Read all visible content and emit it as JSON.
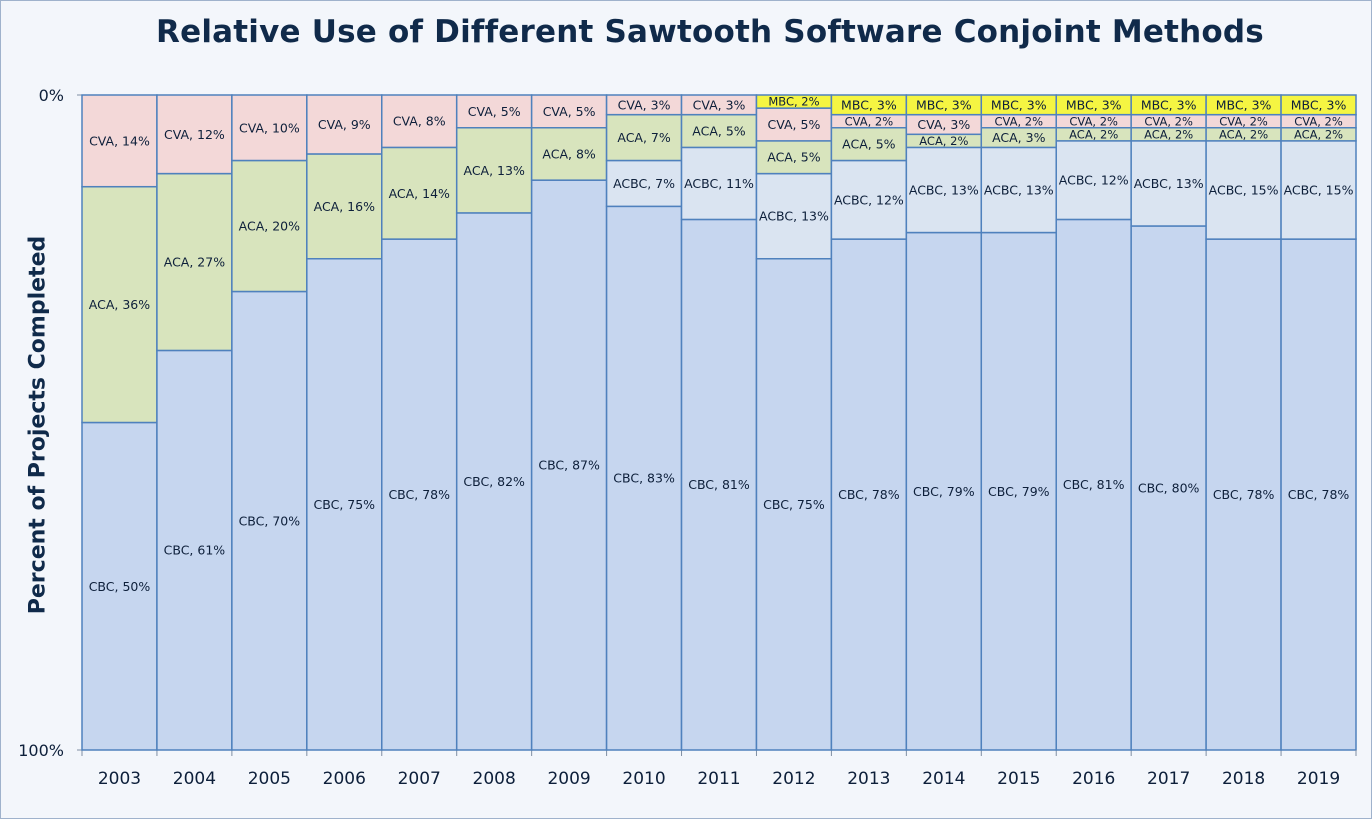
{
  "chart_data": {
    "type": "bar",
    "stacked": true,
    "title": "Relative Use of Different Sawtooth Software Conjoint Methods",
    "xlabel": "",
    "ylabel": "Percent of Projects Completed",
    "ylim": [
      0,
      100
    ],
    "y_ticks": [
      "0%",
      "100%"
    ],
    "categories": [
      "2003",
      "2004",
      "2005",
      "2006",
      "2007",
      "2008",
      "2009",
      "2010",
      "2011",
      "2012",
      "2013",
      "2014",
      "2015",
      "2016",
      "2017",
      "2018",
      "2019"
    ],
    "series": [
      {
        "name": "CBC",
        "color": "#c6d6ef",
        "values": [
          50,
          61,
          70,
          75,
          78,
          82,
          87,
          83,
          81,
          75,
          78,
          79,
          79,
          81,
          80,
          78,
          78
        ]
      },
      {
        "name": "ACBC",
        "color": "#dae4f1",
        "values": [
          0,
          0,
          0,
          0,
          0,
          0,
          0,
          7,
          11,
          13,
          12,
          13,
          13,
          12,
          13,
          15,
          15
        ]
      },
      {
        "name": "ACA",
        "color": "#d8e4bd",
        "values": [
          36,
          27,
          20,
          16,
          14,
          13,
          8,
          7,
          5,
          5,
          5,
          2,
          3,
          2,
          2,
          2,
          2
        ]
      },
      {
        "name": "CVA",
        "color": "#f3d8d8",
        "values": [
          14,
          12,
          10,
          9,
          8,
          5,
          5,
          3,
          3,
          5,
          2,
          3,
          2,
          2,
          2,
          2,
          2
        ]
      },
      {
        "name": "MBC",
        "color": "#f5f542",
        "values": [
          0,
          0,
          0,
          0,
          0,
          0,
          0,
          0,
          0,
          2,
          3,
          3,
          3,
          3,
          3,
          3,
          3
        ]
      }
    ]
  },
  "colors": {
    "outline": "#4f81bd",
    "text": "#0d1f3a",
    "title": "#102a4a"
  }
}
